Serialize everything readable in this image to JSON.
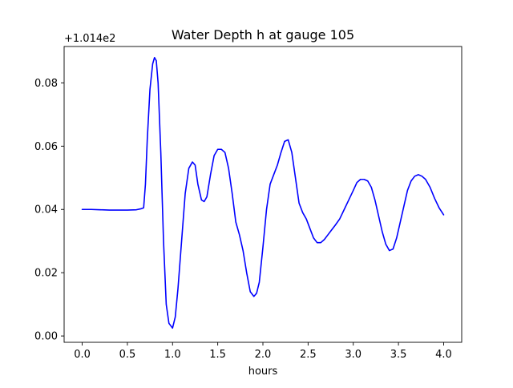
{
  "chart_data": {
    "type": "line",
    "title": "Water Depth h at gauge 105",
    "xlabel": "hours",
    "ylabel": "",
    "y_offset_text": "+1.014e2",
    "xlim": [
      -0.2,
      4.2
    ],
    "ylim": [
      -0.002,
      0.0915
    ],
    "x_ticks": [
      0.0,
      0.5,
      1.0,
      1.5,
      2.0,
      2.5,
      3.0,
      3.5,
      4.0
    ],
    "x_tick_labels": [
      "0.0",
      "0.5",
      "1.0",
      "1.5",
      "2.0",
      "2.5",
      "3.0",
      "3.5",
      "4.0"
    ],
    "y_ticks": [
      0.0,
      0.02,
      0.04,
      0.06,
      0.08
    ],
    "y_tick_labels": [
      "0.00",
      "0.02",
      "0.04",
      "0.06",
      "0.08"
    ],
    "grid": false,
    "legend": "none",
    "series": [
      {
        "color": "#0000ff",
        "x": [
          0.0,
          0.1,
          0.2,
          0.3,
          0.4,
          0.5,
          0.6,
          0.65,
          0.68,
          0.7,
          0.72,
          0.75,
          0.78,
          0.8,
          0.82,
          0.84,
          0.87,
          0.9,
          0.93,
          0.96,
          1.0,
          1.03,
          1.06,
          1.1,
          1.14,
          1.18,
          1.22,
          1.25,
          1.28,
          1.32,
          1.35,
          1.38,
          1.42,
          1.46,
          1.5,
          1.54,
          1.58,
          1.62,
          1.66,
          1.7,
          1.74,
          1.78,
          1.82,
          1.86,
          1.9,
          1.93,
          1.96,
          2.0,
          2.04,
          2.08,
          2.12,
          2.16,
          2.2,
          2.24,
          2.28,
          2.32,
          2.36,
          2.4,
          2.44,
          2.48,
          2.52,
          2.56,
          2.6,
          2.64,
          2.68,
          2.72,
          2.76,
          2.8,
          2.85,
          2.9,
          2.95,
          3.0,
          3.04,
          3.08,
          3.12,
          3.16,
          3.2,
          3.24,
          3.28,
          3.32,
          3.36,
          3.4,
          3.44,
          3.48,
          3.52,
          3.56,
          3.6,
          3.64,
          3.68,
          3.72,
          3.76,
          3.8,
          3.85,
          3.9,
          3.95,
          4.0
        ],
        "y": [
          0.04,
          0.04,
          0.0399,
          0.0398,
          0.0398,
          0.0398,
          0.0399,
          0.0402,
          0.0405,
          0.048,
          0.062,
          0.078,
          0.086,
          0.088,
          0.087,
          0.08,
          0.058,
          0.03,
          0.01,
          0.004,
          0.0025,
          0.006,
          0.015,
          0.03,
          0.045,
          0.053,
          0.055,
          0.054,
          0.048,
          0.043,
          0.0425,
          0.044,
          0.051,
          0.057,
          0.059,
          0.059,
          0.058,
          0.053,
          0.045,
          0.036,
          0.032,
          0.027,
          0.02,
          0.014,
          0.0125,
          0.0135,
          0.017,
          0.028,
          0.04,
          0.048,
          0.051,
          0.054,
          0.058,
          0.0615,
          0.062,
          0.058,
          0.05,
          0.042,
          0.039,
          0.037,
          0.034,
          0.031,
          0.0295,
          0.0295,
          0.0305,
          0.032,
          0.0335,
          0.035,
          0.037,
          0.04,
          0.043,
          0.046,
          0.0485,
          0.0495,
          0.0495,
          0.049,
          0.047,
          0.043,
          0.038,
          0.033,
          0.029,
          0.027,
          0.0275,
          0.031,
          0.036,
          0.041,
          0.046,
          0.049,
          0.0505,
          0.051,
          0.0505,
          0.0495,
          0.047,
          0.0435,
          0.0405,
          0.0383
        ]
      }
    ]
  }
}
